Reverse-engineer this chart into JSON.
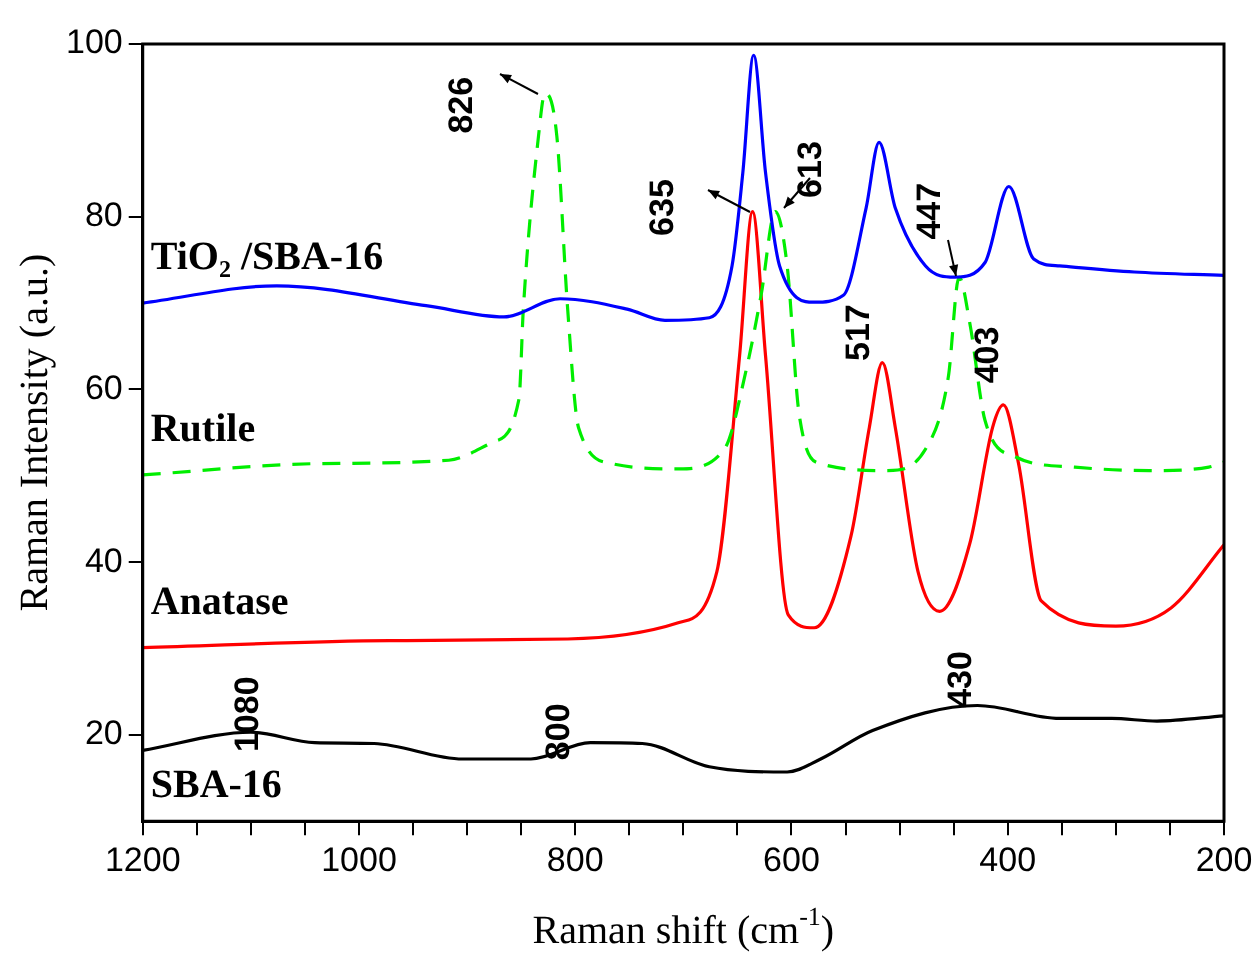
{
  "chart_data": {
    "type": "line",
    "xlabel": "Raman shift (cm$^{-1}$)",
    "ylabel": "Raman Intensity (a.u.)",
    "xlim": [
      1200,
      200
    ],
    "xticks": [
      1200,
      {
        "value": 1150,
        "label": null
      },
      1000,
      {
        "value": 1100,
        "label": null
      },
      {
        "value": 1050,
        "label": null
      },
      {
        "value": 950,
        "label": null
      },
      {
        "value": 900,
        "label": null
      },
      {
        "value": 850,
        "label": null
      },
      800,
      {
        "value": 750,
        "label": null
      },
      {
        "value": 700,
        "label": null
      },
      {
        "value": 650,
        "label": null
      },
      600,
      {
        "value": 550,
        "label": null
      },
      {
        "value": 500,
        "label": null
      },
      {
        "value": 450,
        "label": null
      },
      400,
      {
        "value": 350,
        "label": null
      },
      {
        "value": 300,
        "label": null
      },
      {
        "value": 250,
        "label": null
      },
      200
    ],
    "ylim": [
      10,
      100
    ],
    "yticks": [
      20,
      40,
      60,
      80,
      100
    ],
    "grid": false,
    "legend": false,
    "marker": "none",
    "series": [
      {
        "name": "TiO₂ /SBA-16",
        "color": "#0000ff",
        "line_style": "solid",
        "x": [
          1200,
          1076,
          938,
          866,
          814,
          752,
          717,
          676,
          655,
          645,
          635,
          624,
          611,
          579,
          552,
          531,
          519,
          504,
          476,
          449,
          421,
          399,
          376,
          352,
          283,
          200
        ],
        "values": [
          70.0,
          72.0,
          69.7,
          68.4,
          70.5,
          69.3,
          68.0,
          68.3,
          74.3,
          85.1,
          98.7,
          85.1,
          74.3,
          70.1,
          70.9,
          81.0,
          88.6,
          81.0,
          74.3,
          73.0,
          74.7,
          83.5,
          75.1,
          74.3,
          73.6,
          73.2
        ]
      },
      {
        "name": "Rutile",
        "color": "#00ee00",
        "line_style": "dashed",
        "x": [
          1200,
          1041,
          917,
          876,
          852,
          848,
          834,
          828,
          817,
          807,
          797,
          766,
          704,
          662,
          642,
          628,
          615,
          604,
          593,
          573,
          511,
          476,
          455,
          445,
          435,
          421,
          393,
          338,
          269,
          214,
          200
        ],
        "values": [
          50.1,
          51.4,
          51.8,
          53.9,
          58.9,
          69.3,
          89.3,
          94.3,
          89.3,
          69.3,
          55.6,
          51.4,
          50.8,
          53.1,
          62.2,
          71.0,
          80.6,
          74.3,
          57.2,
          51.4,
          50.6,
          53.1,
          61.4,
          73.0,
          67.6,
          56.4,
          52.2,
          51.0,
          50.6,
          51.0,
          51.6
        ]
      },
      {
        "name": "Anatase",
        "color": "#ff0000",
        "line_style": "solid",
        "x": [
          1200,
          972,
          807,
          704,
          669,
          648,
          636,
          624,
          603,
          579,
          545,
          528,
          516,
          504,
          483,
          463,
          435,
          414,
          404,
          390,
          369,
          300,
          249,
          200
        ],
        "values": [
          30.1,
          30.9,
          31.1,
          33.0,
          38.9,
          63.9,
          80.6,
          63.9,
          33.9,
          32.4,
          43.0,
          55.6,
          63.1,
          55.6,
          38.9,
          34.3,
          42.2,
          55.6,
          58.2,
          51.4,
          35.5,
          32.6,
          34.7,
          42.0
        ]
      },
      {
        "name": "SBA-16",
        "color": "#000000",
        "line_style": "solid",
        "x": [
          1200,
          1100,
          1041,
          986,
          904,
          841,
          786,
          738,
          676,
          604,
          573,
          525,
          428,
          352,
          304,
          262,
          200
        ],
        "values": [
          18.2,
          20.3,
          19.1,
          19.0,
          17.2,
          17.2,
          19.1,
          19.0,
          16.3,
          15.7,
          17.2,
          20.5,
          23.4,
          21.9,
          21.9,
          21.6,
          22.2
        ]
      }
    ],
    "annotations": [
      {
        "text": "826",
        "x": 826,
        "y": 94.3
      },
      {
        "text": "635",
        "x": 635,
        "y": 80.6
      },
      {
        "text": "613",
        "x": 613,
        "y": 80.6
      },
      {
        "text": "447",
        "x": 447,
        "y": 73.0
      },
      {
        "text": "517",
        "x": 517,
        "y": 63.1
      },
      {
        "text": "403",
        "x": 403,
        "y": 58.2
      },
      {
        "text": "1080",
        "x": 1080,
        "y": 20.3
      },
      {
        "text": "800",
        "x": 800,
        "y": 18.5
      },
      {
        "text": "430",
        "x": 430,
        "y": 23.4
      }
    ]
  }
}
